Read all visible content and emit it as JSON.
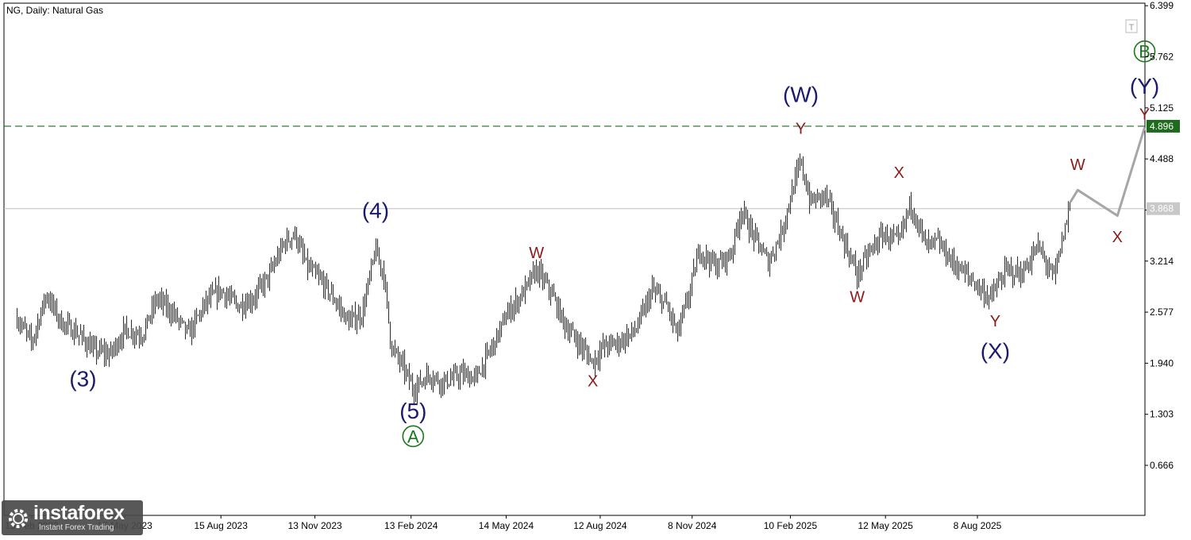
{
  "chart_data": {
    "type": "ohlc",
    "title": "NG, Daily:  Natural Gas",
    "y_ticks": [
      "6.399",
      "5.762",
      "5.125",
      "4.488",
      "3.851",
      "3.214",
      "2.577",
      "1.940",
      "1.303",
      "0.666"
    ],
    "ylim": [
      0.0,
      6.4
    ],
    "x_ticks": [
      "15 Feb 2023",
      "15 May 2023",
      "15 Aug 2023",
      "13 Nov 2023",
      "13 Feb 2024",
      "14 May 2024",
      "12 Aug 2024",
      "8 Nov 2024",
      "10 Feb 2025",
      "12 May 2025",
      "8 Aug 2025"
    ],
    "current_price": "3.868",
    "target_level": "4.896",
    "price_path": [
      [
        "2023-02-01",
        2.5
      ],
      [
        "2023-02-15",
        2.2
      ],
      [
        "2023-03-01",
        2.8
      ],
      [
        "2023-03-15",
        2.45
      ],
      [
        "2023-04-01",
        2.3
      ],
      [
        "2023-04-15",
        2.1
      ],
      [
        "2023-05-01",
        2.05
      ],
      [
        "2023-05-15",
        2.35
      ],
      [
        "2023-06-01",
        2.3
      ],
      [
        "2023-06-15",
        2.75
      ],
      [
        "2023-07-01",
        2.55
      ],
      [
        "2023-07-15",
        2.3
      ],
      [
        "2023-08-01",
        2.7
      ],
      [
        "2023-08-15",
        2.85
      ],
      [
        "2023-09-01",
        2.65
      ],
      [
        "2023-09-15",
        2.75
      ],
      [
        "2023-10-01",
        3.05
      ],
      [
        "2023-10-15",
        3.45
      ],
      [
        "2023-10-25",
        3.55
      ],
      [
        "2023-11-05",
        3.15
      ],
      [
        "2023-11-20",
        2.95
      ],
      [
        "2023-12-01",
        2.75
      ],
      [
        "2023-12-15",
        2.45
      ],
      [
        "2023-12-28",
        2.55
      ],
      [
        "2024-01-10",
        3.35
      ],
      [
        "2024-01-18",
        3.05
      ],
      [
        "2024-01-25",
        2.15
      ],
      [
        "2024-02-05",
        1.9
      ],
      [
        "2024-02-15",
        1.62
      ],
      [
        "2024-03-01",
        1.8
      ],
      [
        "2024-03-15",
        1.7
      ],
      [
        "2024-04-01",
        1.8
      ],
      [
        "2024-04-15",
        1.75
      ],
      [
        "2024-05-01",
        2.15
      ],
      [
        "2024-05-15",
        2.55
      ],
      [
        "2024-06-01",
        2.85
      ],
      [
        "2024-06-12",
        3.1
      ],
      [
        "2024-06-25",
        2.85
      ],
      [
        "2024-07-10",
        2.4
      ],
      [
        "2024-07-25",
        2.15
      ],
      [
        "2024-08-05",
        1.95
      ],
      [
        "2024-08-15",
        2.15
      ],
      [
        "2024-08-30",
        2.2
      ],
      [
        "2024-09-15",
        2.35
      ],
      [
        "2024-10-01",
        2.85
      ],
      [
        "2024-10-15",
        2.65
      ],
      [
        "2024-10-25",
        2.3
      ],
      [
        "2024-11-05",
        2.8
      ],
      [
        "2024-11-15",
        3.35
      ],
      [
        "2024-12-01",
        3.15
      ],
      [
        "2024-12-15",
        3.3
      ],
      [
        "2024-12-25",
        3.85
      ],
      [
        "2025-01-05",
        3.55
      ],
      [
        "2025-01-20",
        3.2
      ],
      [
        "2025-02-01",
        3.55
      ],
      [
        "2025-02-10",
        4.0
      ],
      [
        "2025-02-20",
        4.45
      ],
      [
        "2025-03-01",
        3.95
      ],
      [
        "2025-03-15",
        4.05
      ],
      [
        "2025-04-01",
        3.5
      ],
      [
        "2025-04-15",
        3.05
      ],
      [
        "2025-04-28",
        3.35
      ],
      [
        "2025-05-10",
        3.55
      ],
      [
        "2025-05-25",
        3.45
      ],
      [
        "2025-06-05",
        3.95
      ],
      [
        "2025-06-20",
        3.4
      ],
      [
        "2025-07-01",
        3.45
      ],
      [
        "2025-07-15",
        3.2
      ],
      [
        "2025-08-01",
        3.0
      ],
      [
        "2025-08-20",
        2.75
      ],
      [
        "2025-09-05",
        3.1
      ],
      [
        "2025-09-20",
        3.05
      ],
      [
        "2025-10-05",
        3.4
      ],
      [
        "2025-10-20",
        3.0
      ],
      [
        "2025-10-28",
        3.45
      ],
      [
        "2025-11-05",
        3.95
      ]
    ],
    "forecast_path": [
      [
        "2025-11-05",
        3.95
      ],
      [
        "2025-11-12",
        4.1
      ],
      [
        "2025-12-20",
        3.78
      ],
      [
        "2026-01-15",
        4.88
      ]
    ],
    "wave_labels": [
      {
        "text": "(3)",
        "date": "2023-04-05",
        "price": 1.65,
        "color": "#1a1a6e",
        "size": "big"
      },
      {
        "text": "(4)",
        "date": "2024-01-10",
        "price": 3.75,
        "color": "#1a1a6e",
        "size": "big"
      },
      {
        "text": "(5)",
        "date": "2024-02-15",
        "price": 1.25,
        "color": "#1a1a6e",
        "size": "big"
      },
      {
        "text": "A",
        "date": "2024-02-15",
        "price": 0.95,
        "color": "#1a7a1a",
        "size": "circle"
      },
      {
        "text": "(W)",
        "date": "2025-02-20",
        "price": 5.2,
        "color": "#1a1a6e",
        "size": "big"
      },
      {
        "text": "Y",
        "date": "2025-02-20",
        "price": 4.8,
        "color": "#8b1a1a",
        "size": "small"
      },
      {
        "text": "W",
        "date": "2024-06-12",
        "price": 3.25,
        "color": "#8b1a1a",
        "size": "small"
      },
      {
        "text": "X",
        "date": "2024-08-05",
        "price": 1.65,
        "color": "#8b1a1a",
        "size": "small"
      },
      {
        "text": "W",
        "date": "2025-04-15",
        "price": 2.7,
        "color": "#8b1a1a",
        "size": "small"
      },
      {
        "text": "X",
        "date": "2025-05-25",
        "price": 4.25,
        "color": "#8b1a1a",
        "size": "small"
      },
      {
        "text": "Y",
        "date": "2025-08-25",
        "price": 2.4,
        "color": "#8b1a1a",
        "size": "small"
      },
      {
        "text": "(X)",
        "date": "2025-08-25",
        "price": 2.0,
        "color": "#1a1a6e",
        "size": "big"
      },
      {
        "text": "W",
        "date": "2025-11-12",
        "price": 4.35,
        "color": "#8b1a1a",
        "size": "small"
      },
      {
        "text": "X",
        "date": "2025-12-20",
        "price": 3.45,
        "color": "#8b1a1a",
        "size": "small"
      },
      {
        "text": "Y",
        "date": "2026-01-15",
        "price": 4.98,
        "color": "#8b1a1a",
        "size": "small"
      },
      {
        "text": "(Y)",
        "date": "2026-01-15",
        "price": 5.3,
        "color": "#1a1a6e",
        "size": "big"
      },
      {
        "text": "B",
        "date": "2026-01-15",
        "price": 5.75,
        "color": "#1a7a1a",
        "size": "circle"
      }
    ],
    "colors": {
      "bars": "#222222",
      "forecast": "#a6a6a6",
      "target_line": "#1e6b1e",
      "target_tag": "#1e6b1e",
      "current_line": "#c0c0c0",
      "current_tag": "#c8c8c8"
    }
  },
  "watermark": {
    "brand": "instaforex",
    "tagline": "Instant Forex Trading"
  }
}
